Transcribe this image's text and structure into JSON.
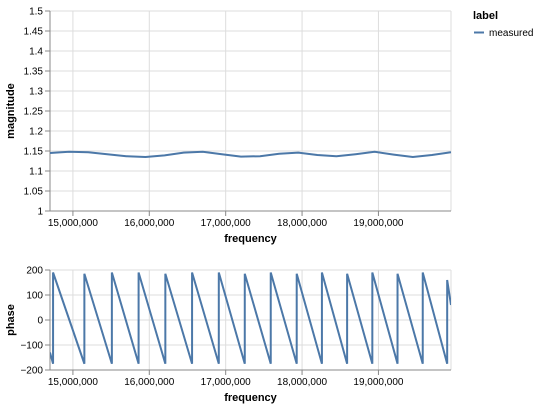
{
  "chart_data": [
    {
      "type": "line",
      "ylabel": "magnitude",
      "xlabel": "frequency",
      "xlim": [
        14700000,
        19950000
      ],
      "ylim": [
        1,
        1.5
      ],
      "x_ticks": [
        15000000,
        16000000,
        17000000,
        18000000,
        19000000
      ],
      "x_tick_labels": [
        "15,000,000",
        "16,000,000",
        "17,000,000",
        "18,000,000",
        "19,000,000"
      ],
      "y_ticks": [
        1,
        1.05,
        1.1,
        1.15,
        1.2,
        1.25,
        1.3,
        1.35,
        1.4,
        1.45,
        1.5
      ],
      "y_tick_labels": [
        "1",
        "1.05",
        "1.1",
        "1.15",
        "1.2",
        "1.25",
        "1.3",
        "1.35",
        "1.4",
        "1.45",
        "1.5"
      ],
      "grid": true,
      "series": [
        {
          "name": "measured",
          "color": "#4c78a8",
          "x": [
            14700000,
            14950000,
            15200000,
            15450000,
            15700000,
            15950000,
            16200000,
            16450000,
            16700000,
            16950000,
            17200000,
            17450000,
            17700000,
            17950000,
            18200000,
            18450000,
            18700000,
            18950000,
            19200000,
            19450000,
            19700000,
            19950000
          ],
          "y": [
            1.145,
            1.148,
            1.147,
            1.142,
            1.137,
            1.135,
            1.139,
            1.146,
            1.148,
            1.142,
            1.136,
            1.137,
            1.143,
            1.146,
            1.14,
            1.137,
            1.142,
            1.148,
            1.141,
            1.135,
            1.14,
            1.147
          ]
        }
      ]
    },
    {
      "type": "line",
      "ylabel": "phase",
      "xlabel": "frequency",
      "xlim": [
        14700000,
        19950000
      ],
      "ylim": [
        -200,
        200
      ],
      "x_ticks": [
        15000000,
        16000000,
        17000000,
        18000000,
        19000000
      ],
      "x_tick_labels": [
        "15,000,000",
        "16,000,000",
        "17,000,000",
        "18,000,000",
        "19,000,000"
      ],
      "y_ticks": [
        -200,
        -100,
        0,
        100,
        200
      ],
      "y_tick_labels": [
        "−200",
        "−100",
        "0",
        "100",
        "200"
      ],
      "grid": true,
      "series": [
        {
          "name": "measured",
          "color": "#4c78a8",
          "x": [
            14700000,
            14740000,
            14740000,
            15150000,
            15150000,
            15510000,
            15510000,
            15860000,
            15860000,
            16210000,
            16210000,
            16560000,
            16560000,
            16910000,
            16910000,
            17250000,
            17250000,
            17590000,
            17590000,
            17930000,
            17930000,
            18260000,
            18260000,
            18590000,
            18590000,
            18920000,
            18920000,
            19250000,
            19250000,
            19580000,
            19580000,
            19900000,
            19900000,
            19950000
          ],
          "y": [
            -130,
            -175,
            190,
            -175,
            185,
            -175,
            190,
            -175,
            190,
            -175,
            185,
            -175,
            190,
            -175,
            190,
            -175,
            185,
            -175,
            190,
            -175,
            185,
            -175,
            190,
            -175,
            185,
            -175,
            190,
            -175,
            185,
            -175,
            190,
            -175,
            160,
            60
          ]
        }
      ]
    }
  ],
  "legend": {
    "title": "label",
    "items": [
      {
        "label": "measured",
        "color": "#4c78a8"
      }
    ]
  }
}
